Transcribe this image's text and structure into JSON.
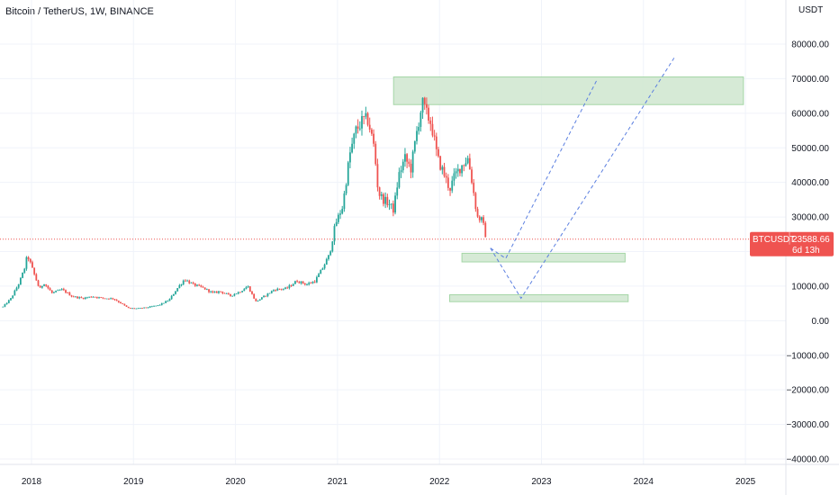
{
  "header": {
    "title": "Bitcoin / TetherUS, 1W, BINANCE"
  },
  "price_tag": {
    "symbol": "BTCUSDT",
    "price": "23588.66",
    "countdown": "6d 13h"
  },
  "colors": {
    "up": "#26a69a",
    "down": "#ef5350",
    "grid": "#f0f3fa",
    "zone_fill": "#cfe6cf",
    "zone_stroke": "#a5d6a7",
    "projection": "#5b7fe0",
    "tag": "#ef5350",
    "price_line": "#ef5350"
  },
  "chart_data": {
    "type": "candlestick",
    "title": "Bitcoin / TetherUS, 1W, BINANCE",
    "currency_label": "USDT",
    "y_ticks": [
      "80000.00",
      "70000.00",
      "60000.00",
      "50000.00",
      "40000.00",
      "30000.00",
      "20000.00",
      "10000.00",
      "0.00",
      "−10000.00",
      "−20000.00",
      "−30000.00",
      "−40000.00"
    ],
    "y_tick_values": [
      80000,
      70000,
      60000,
      50000,
      40000,
      30000,
      20000,
      10000,
      0,
      -10000,
      -20000,
      -30000,
      -40000
    ],
    "x_ticks": [
      "2018",
      "2019",
      "2020",
      "2021",
      "2022",
      "2023",
      "2024",
      "2025"
    ],
    "x_tick_values": [
      2018,
      2019,
      2020,
      2021,
      2022,
      2023,
      2024,
      2025
    ],
    "xlim": [
      2017.7,
      2025.4
    ],
    "ylim": [
      -43000,
      86000
    ],
    "last_price": 23588.66,
    "price_path": [
      [
        2017.72,
        4000
      ],
      [
        2017.8,
        6500
      ],
      [
        2017.88,
        11000
      ],
      [
        2017.93,
        15000
      ],
      [
        2017.96,
        19000
      ],
      [
        2018.02,
        14000
      ],
      [
        2018.08,
        9000
      ],
      [
        2018.12,
        11000
      ],
      [
        2018.2,
        8000
      ],
      [
        2018.3,
        9000
      ],
      [
        2018.4,
        7000
      ],
      [
        2018.5,
        6500
      ],
      [
        2018.6,
        7000
      ],
      [
        2018.7,
        6500
      ],
      [
        2018.8,
        6400
      ],
      [
        2018.88,
        5000
      ],
      [
        2018.95,
        3600
      ],
      [
        2019.05,
        3500
      ],
      [
        2019.15,
        3900
      ],
      [
        2019.25,
        4500
      ],
      [
        2019.35,
        6000
      ],
      [
        2019.42,
        9000
      ],
      [
        2019.5,
        12000
      ],
      [
        2019.58,
        10500
      ],
      [
        2019.68,
        9500
      ],
      [
        2019.78,
        8000
      ],
      [
        2019.85,
        8500
      ],
      [
        2019.95,
        7200
      ],
      [
        2020.05,
        8500
      ],
      [
        2020.12,
        10000
      ],
      [
        2020.2,
        5500
      ],
      [
        2020.28,
        7000
      ],
      [
        2020.38,
        9000
      ],
      [
        2020.5,
        9300
      ],
      [
        2020.6,
        11500
      ],
      [
        2020.7,
        10500
      ],
      [
        2020.78,
        11500
      ],
      [
        2020.85,
        15000
      ],
      [
        2020.92,
        19000
      ],
      [
        2020.98,
        28000
      ],
      [
        2021.05,
        33000
      ],
      [
        2021.12,
        48000
      ],
      [
        2021.18,
        55000
      ],
      [
        2021.25,
        58000
      ],
      [
        2021.3,
        58000
      ],
      [
        2021.36,
        50000
      ],
      [
        2021.4,
        37000
      ],
      [
        2021.45,
        35000
      ],
      [
        2021.5,
        34000
      ],
      [
        2021.55,
        32000
      ],
      [
        2021.6,
        42000
      ],
      [
        2021.66,
        47000
      ],
      [
        2021.72,
        44000
      ],
      [
        2021.78,
        55000
      ],
      [
        2021.83,
        63000
      ],
      [
        2021.87,
        60000
      ],
      [
        2021.92,
        57000
      ],
      [
        2021.98,
        47000
      ],
      [
        2022.05,
        42000
      ],
      [
        2022.1,
        38000
      ],
      [
        2022.15,
        42000
      ],
      [
        2022.22,
        45000
      ],
      [
        2022.28,
        47000
      ],
      [
        2022.32,
        40000
      ],
      [
        2022.37,
        30000
      ],
      [
        2022.42,
        29000
      ],
      [
        2022.46,
        23588.66
      ]
    ],
    "zones": [
      {
        "x": [
          2021.55,
          2024.98
        ],
        "y": [
          62500,
          70500
        ]
      },
      {
        "x": [
          2022.22,
          2023.82
        ],
        "y": [
          17000,
          19500
        ]
      },
      {
        "x": [
          2022.1,
          2023.85
        ],
        "y": [
          5500,
          7500
        ]
      }
    ],
    "projections": [
      [
        [
          2022.5,
          21000
        ],
        [
          2022.65,
          18000
        ],
        [
          2023.55,
          70000
        ]
      ],
      [
        [
          2022.5,
          21000
        ],
        [
          2022.8,
          6500
        ],
        [
          2024.3,
          76000
        ]
      ]
    ]
  }
}
